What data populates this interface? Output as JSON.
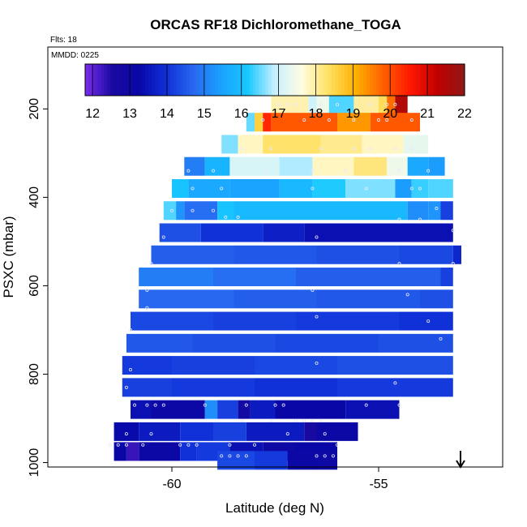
{
  "chart_data": {
    "type": "heatmap",
    "title": "ORCAS RF18 Dichloromethane_TOGA",
    "flights_label": "Flts: 18",
    "date_label": "MMDD: 0225",
    "xlabel": "Latitude (deg N)",
    "ylabel": "PSXC (mbar)",
    "xlim": [
      -63,
      -52
    ],
    "ylim": [
      1010,
      60
    ],
    "x_ticks": [
      "-60",
      "-55"
    ],
    "y_ticks": [
      "200",
      "400",
      "600",
      "800",
      "1000"
    ],
    "colorbar": {
      "min": 11.8,
      "max": 22,
      "tick_labels": [
        "12",
        "13",
        "14",
        "15",
        "16",
        "17",
        "18",
        "19",
        "20",
        "21",
        "22"
      ],
      "colors": [
        "#7b2cf0",
        "#1a0aa0",
        "#0808a8",
        "#1030d8",
        "#2868f0",
        "#1aa0ff",
        "#18c8ff",
        "#c8f0ff",
        "#fffde0",
        "#ffe060",
        "#ffb000",
        "#ff6000",
        "#ff1800",
        "#c00000",
        "#901818"
      ]
    },
    "direction_arrow": "down",
    "rows": [
      {
        "pressure": 190,
        "segments": [
          [
            -57.6,
            -56.7,
            17.9
          ],
          [
            -56.7,
            -56.5,
            17.0
          ],
          [
            -56.5,
            -56.2,
            17.4
          ],
          [
            -56.2,
            -55.6,
            16.4
          ],
          [
            -55.6,
            -55.0,
            18.0
          ],
          [
            -55.0,
            -54.8,
            18.4
          ],
          [
            -54.8,
            -54.6,
            19.7
          ],
          [
            -54.6,
            -54.3,
            21.5
          ]
        ]
      },
      {
        "pressure": 230,
        "segments": [
          [
            -58.2,
            -58.0,
            16.5
          ],
          [
            -58.0,
            -57.8,
            18.6
          ],
          [
            -57.8,
            -57.6,
            20.4
          ],
          [
            -57.6,
            -56.0,
            19.9
          ],
          [
            -56.0,
            -55.2,
            19.3
          ],
          [
            -55.2,
            -54.0,
            19.9
          ]
        ]
      },
      {
        "pressure": 280,
        "segments": [
          [
            -58.8,
            -58.4,
            16.6
          ],
          [
            -58.4,
            -57.8,
            17.8
          ],
          [
            -57.8,
            -56.4,
            18.3
          ],
          [
            -56.4,
            -55.4,
            18.1
          ],
          [
            -55.4,
            -54.4,
            17.8
          ],
          [
            -54.4,
            -53.8,
            17.3
          ]
        ]
      },
      {
        "pressure": 330,
        "segments": [
          [
            -59.7,
            -59.2,
            15.0
          ],
          [
            -59.2,
            -58.6,
            15.8
          ],
          [
            -58.6,
            -57.4,
            17.1
          ],
          [
            -57.4,
            -56.6,
            16.8
          ],
          [
            -56.6,
            -55.6,
            17.8
          ],
          [
            -55.6,
            -54.8,
            18.2
          ],
          [
            -54.8,
            -54.3,
            17.4
          ],
          [
            -54.3,
            -53.8,
            15.6
          ],
          [
            -53.8,
            -53.4,
            15.4
          ]
        ]
      },
      {
        "pressure": 380,
        "segments": [
          [
            -60.0,
            -59.6,
            16.1
          ],
          [
            -59.6,
            -58.6,
            15.6
          ],
          [
            -58.6,
            -57.4,
            15.5
          ],
          [
            -57.4,
            -56.6,
            15.9
          ],
          [
            -56.6,
            -55.8,
            16.2
          ],
          [
            -55.8,
            -54.6,
            16.6
          ],
          [
            -54.6,
            -54.2,
            15.4
          ],
          [
            -54.2,
            -53.8,
            16.3
          ],
          [
            -53.8,
            -53.2,
            16.4
          ]
        ]
      },
      {
        "pressure": 430,
        "segments": [
          [
            -60.2,
            -59.9,
            16.4
          ],
          [
            -59.9,
            -59.7,
            15.3
          ],
          [
            -59.7,
            -58.9,
            14.8
          ],
          [
            -58.9,
            -58.5,
            16.1
          ],
          [
            -58.5,
            -54.3,
            15.9
          ],
          [
            -54.3,
            -53.8,
            15.2
          ],
          [
            -53.8,
            -53.5,
            15.3
          ],
          [
            -53.5,
            -53.2,
            14.2
          ]
        ]
      },
      {
        "pressure": 480,
        "segments": [
          [
            -60.3,
            -59.3,
            14.4
          ],
          [
            -59.3,
            -57.8,
            14.0
          ],
          [
            -57.8,
            -56.8,
            13.7
          ],
          [
            -56.8,
            -53.2,
            13.4
          ]
        ]
      },
      {
        "pressure": 530,
        "segments": [
          [
            -60.5,
            -58.5,
            14.6
          ],
          [
            -58.5,
            -56.5,
            14.5
          ],
          [
            -56.5,
            -54.5,
            14.4
          ],
          [
            -54.5,
            -53.2,
            14.3
          ],
          [
            -53.2,
            -53.0,
            13.8
          ]
        ]
      },
      {
        "pressure": 580,
        "segments": [
          [
            -60.8,
            -59.0,
            15.0
          ],
          [
            -59.0,
            -57.0,
            14.8
          ],
          [
            -57.0,
            -55.5,
            14.6
          ],
          [
            -55.5,
            -53.5,
            14.6
          ],
          [
            -53.5,
            -53.2,
            14.2
          ]
        ]
      },
      {
        "pressure": 630,
        "segments": [
          [
            -60.8,
            -58.5,
            14.7
          ],
          [
            -58.5,
            -56.5,
            14.6
          ],
          [
            -56.5,
            -54.0,
            14.5
          ],
          [
            -54.0,
            -53.2,
            14.4
          ]
        ]
      },
      {
        "pressure": 680,
        "segments": [
          [
            -61.0,
            -59.0,
            14.3
          ],
          [
            -59.0,
            -57.0,
            14.2
          ],
          [
            -57.0,
            -54.5,
            14.1
          ],
          [
            -54.5,
            -53.2,
            14.0
          ]
        ]
      },
      {
        "pressure": 730,
        "segments": [
          [
            -61.1,
            -59.5,
            14.5
          ],
          [
            -59.5,
            -57.5,
            14.4
          ],
          [
            -57.5,
            -55.0,
            14.3
          ],
          [
            -55.0,
            -53.2,
            14.4
          ]
        ]
      },
      {
        "pressure": 780,
        "segments": [
          [
            -61.2,
            -60.0,
            14.1
          ],
          [
            -60.0,
            -58.0,
            14.2
          ],
          [
            -58.0,
            -56.0,
            14.3
          ],
          [
            -56.0,
            -53.2,
            14.4
          ]
        ]
      },
      {
        "pressure": 830,
        "segments": [
          [
            -61.2,
            -60.0,
            14.2
          ],
          [
            -60.0,
            -58.0,
            14.1
          ],
          [
            -58.0,
            -56.0,
            14.0
          ],
          [
            -56.0,
            -53.2,
            14.1
          ]
        ]
      },
      {
        "pressure": 880,
        "segments": [
          [
            -61.0,
            -60.5,
            13.4
          ],
          [
            -60.5,
            -59.2,
            13.1
          ],
          [
            -59.2,
            -58.9,
            15.2
          ],
          [
            -58.9,
            -58.4,
            14.2
          ],
          [
            -58.4,
            -58.1,
            12.8
          ],
          [
            -58.1,
            -57.5,
            13.6
          ],
          [
            -57.5,
            -55.8,
            13.2
          ],
          [
            -55.8,
            -54.5,
            13.4
          ]
        ]
      },
      {
        "pressure": 930,
        "segments": [
          [
            -61.4,
            -60.8,
            13.3
          ],
          [
            -60.8,
            -59.8,
            13.6
          ],
          [
            -59.8,
            -59.0,
            14.0
          ],
          [
            -59.0,
            -58.2,
            14.2
          ],
          [
            -58.2,
            -56.8,
            13.6
          ],
          [
            -56.8,
            -56.5,
            12.6
          ],
          [
            -56.5,
            -55.5,
            13.1
          ]
        ]
      },
      {
        "pressure": 975,
        "segments": [
          [
            -61.4,
            -61.1,
            13.2
          ],
          [
            -61.1,
            -60.8,
            12.3
          ],
          [
            -60.8,
            -59.8,
            13.1
          ],
          [
            -59.8,
            -59.4,
            14.0
          ],
          [
            -59.4,
            -58.6,
            14.1
          ],
          [
            -58.6,
            -57.8,
            13.4
          ],
          [
            -57.8,
            -57.0,
            13.0
          ],
          [
            -57.0,
            -56.0,
            13.2
          ]
        ]
      },
      {
        "pressure": 995,
        "segments": [
          [
            -58.9,
            -58.0,
            14.3
          ],
          [
            -58.0,
            -57.2,
            14.1
          ],
          [
            -57.2,
            -56.5,
            13.1
          ],
          [
            -56.5,
            -56.0,
            13.0
          ]
        ]
      }
    ],
    "sample_points": [
      [
        -57.4,
        190
      ],
      [
        -57.2,
        190
      ],
      [
        -57.0,
        190
      ],
      [
        -56.4,
        190
      ],
      [
        -56.0,
        190
      ],
      [
        -55.2,
        190
      ],
      [
        -54.8,
        190
      ],
      [
        -54.6,
        190
      ],
      [
        -57.8,
        225
      ],
      [
        -56.8,
        225
      ],
      [
        -56.2,
        225
      ],
      [
        -55.6,
        225
      ],
      [
        -55.0,
        225
      ],
      [
        -54.8,
        225
      ],
      [
        -54.2,
        225
      ],
      [
        -58.3,
        290
      ],
      [
        -57.6,
        290
      ],
      [
        -56.4,
        290
      ],
      [
        -55.6,
        290
      ],
      [
        -55.2,
        290
      ],
      [
        -54.6,
        290
      ],
      [
        -54.2,
        290
      ],
      [
        -59.6,
        340
      ],
      [
        -59.0,
        340
      ],
      [
        -57.7,
        340
      ],
      [
        -56.6,
        340
      ],
      [
        -55.8,
        340
      ],
      [
        -54.5,
        340
      ],
      [
        -53.8,
        340
      ],
      [
        -59.5,
        380
      ],
      [
        -58.8,
        380
      ],
      [
        -56.6,
        380
      ],
      [
        -55.3,
        380
      ],
      [
        -54.2,
        380
      ],
      [
        -54.0,
        380
      ],
      [
        -60.0,
        430
      ],
      [
        -59.5,
        430
      ],
      [
        -59.0,
        430
      ],
      [
        -58.7,
        445
      ],
      [
        -58.4,
        445
      ],
      [
        -54.5,
        450
      ],
      [
        -54.0,
        450
      ],
      [
        -53.6,
        425
      ],
      [
        -60.2,
        490
      ],
      [
        -56.5,
        490
      ],
      [
        -53.2,
        475
      ],
      [
        -60.5,
        550
      ],
      [
        -54.5,
        550
      ],
      [
        -53.2,
        550
      ],
      [
        -60.6,
        610
      ],
      [
        -56.6,
        610
      ],
      [
        -54.3,
        620
      ],
      [
        -60.6,
        650
      ],
      [
        -56.5,
        670
      ],
      [
        -53.8,
        680
      ],
      [
        -61.0,
        700
      ],
      [
        -53.5,
        720
      ],
      [
        -61.0,
        790
      ],
      [
        -56.5,
        775
      ],
      [
        -61.1,
        830
      ],
      [
        -54.6,
        820
      ],
      [
        -60.9,
        870
      ],
      [
        -60.6,
        870
      ],
      [
        -60.4,
        870
      ],
      [
        -60.2,
        870
      ],
      [
        -59.2,
        870
      ],
      [
        -58.2,
        870
      ],
      [
        -57.5,
        870
      ],
      [
        -57.3,
        870
      ],
      [
        -55.3,
        870
      ],
      [
        -54.5,
        870
      ],
      [
        -58.3,
        905
      ],
      [
        -57.6,
        905
      ],
      [
        -57.0,
        905
      ],
      [
        -56.8,
        905
      ],
      [
        -56.6,
        905
      ],
      [
        -56.4,
        905
      ],
      [
        -61.1,
        935
      ],
      [
        -60.5,
        935
      ],
      [
        -57.2,
        935
      ],
      [
        -56.3,
        935
      ],
      [
        -61.5,
        960
      ],
      [
        -61.3,
        960
      ],
      [
        -61.1,
        960
      ],
      [
        -60.7,
        960
      ],
      [
        -59.8,
        960
      ],
      [
        -59.6,
        960
      ],
      [
        -59.4,
        960
      ],
      [
        -58.6,
        960
      ],
      [
        -58.0,
        960
      ],
      [
        -56.0,
        960
      ],
      [
        -58.8,
        985
      ],
      [
        -58.6,
        985
      ],
      [
        -58.4,
        985
      ],
      [
        -58.2,
        985
      ],
      [
        -56.5,
        985
      ],
      [
        -56.3,
        985
      ],
      [
        -56.1,
        985
      ]
    ]
  }
}
